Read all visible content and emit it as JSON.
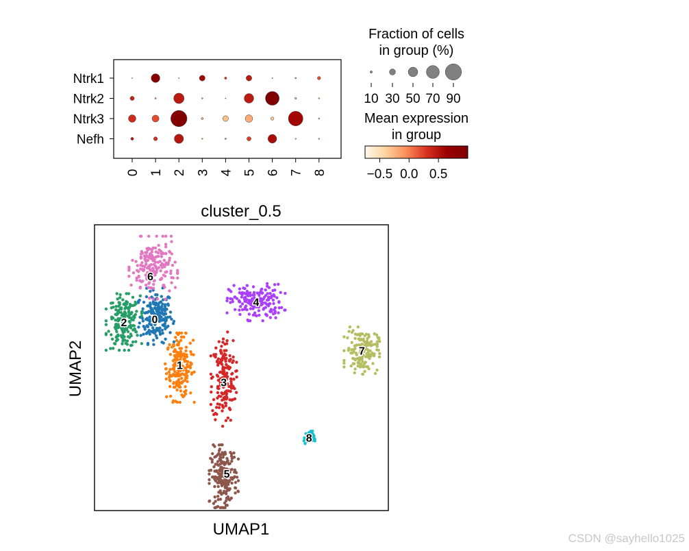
{
  "chart_data": [
    {
      "type": "dotplot",
      "genes": [
        "Ntrk1",
        "Ntrk2",
        "Ntrk3",
        "Nefh"
      ],
      "groups": [
        "0",
        "1",
        "2",
        "3",
        "4",
        "5",
        "6",
        "7",
        "8"
      ],
      "fraction_pct": [
        [
          1,
          45,
          1,
          28,
          10,
          28,
          2,
          6,
          15
        ],
        [
          20,
          6,
          55,
          6,
          3,
          50,
          75,
          8,
          5
        ],
        [
          38,
          35,
          90,
          9,
          28,
          38,
          15,
          80,
          5
        ],
        [
          13,
          18,
          48,
          5,
          7,
          20,
          45,
          5,
          5
        ]
      ],
      "mean_expression": [
        [
          0.0,
          0.85,
          0.0,
          0.6,
          0.25,
          0.45,
          0.3,
          0.0,
          0.2
        ],
        [
          0.4,
          0.05,
          0.45,
          -0.2,
          0.0,
          0.45,
          1.0,
          -0.25,
          -0.1
        ],
        [
          0.35,
          0.2,
          0.95,
          -0.2,
          -0.3,
          -0.2,
          -0.35,
          0.6,
          -0.1
        ],
        [
          0.45,
          0.3,
          0.5,
          -0.1,
          -0.2,
          0.25,
          0.55,
          -0.3,
          -0.1
        ]
      ],
      "size_legend": {
        "title_lines": [
          "Fraction of cells",
          "in group (%)"
        ],
        "values": [
          10,
          30,
          50,
          70,
          90
        ],
        "labels": [
          "10",
          "30",
          "50",
          "70",
          "90"
        ]
      },
      "color_legend": {
        "title_lines": [
          "Mean expression",
          "in group"
        ],
        "range": [
          -0.75,
          1.0
        ],
        "tick_values": [
          -0.5,
          0.0,
          0.5
        ],
        "tick_labels": [
          "−0.5",
          "0.0",
          "0.5"
        ],
        "colormap": "OrRd",
        "colors": [
          "#fff7ec",
          "#fdd49e",
          "#fc8d59",
          "#d7301f",
          "#990000",
          "#7f0000"
        ]
      }
    },
    {
      "type": "scatter",
      "title": "cluster_0.5",
      "xlabel": "UMAP1",
      "ylabel": "UMAP2",
      "xlim": [
        0,
        10
      ],
      "ylim": [
        0,
        10
      ],
      "clusters": [
        {
          "label": "0",
          "color": "#1f77b4",
          "center": [
            2.1,
            6.8
          ],
          "spread": [
            0.55,
            0.9
          ],
          "n": 200
        },
        {
          "label": "1",
          "color": "#ff7f0e",
          "center": [
            2.9,
            5.0
          ],
          "spread": [
            0.45,
            1.1
          ],
          "n": 190
        },
        {
          "label": "2",
          "color": "#279e68",
          "center": [
            1.0,
            6.6
          ],
          "spread": [
            0.55,
            0.9
          ],
          "n": 190
        },
        {
          "label": "3",
          "color": "#d62728",
          "center": [
            4.4,
            4.6
          ],
          "spread": [
            0.4,
            1.5
          ],
          "n": 190
        },
        {
          "label": "4",
          "color": "#aa40fc",
          "center": [
            5.5,
            7.3
          ],
          "spread": [
            0.9,
            0.6
          ],
          "n": 180
        },
        {
          "label": "5",
          "color": "#8c564b",
          "center": [
            4.4,
            1.2
          ],
          "spread": [
            0.45,
            1.0
          ],
          "n": 220
        },
        {
          "label": "6",
          "color": "#e377c2",
          "center": [
            2.0,
            8.5
          ],
          "spread": [
            0.75,
            1.0
          ],
          "n": 190
        },
        {
          "label": "7",
          "color": "#b5bd61",
          "center": [
            9.1,
            5.6
          ],
          "spread": [
            0.55,
            0.75
          ],
          "n": 150
        },
        {
          "label": "8",
          "color": "#17becf",
          "center": [
            7.3,
            2.55
          ],
          "spread": [
            0.18,
            0.22
          ],
          "n": 45
        }
      ],
      "label_positions": {
        "0": [
          2.05,
          6.7
        ],
        "1": [
          2.9,
          5.1
        ],
        "2": [
          1.0,
          6.6
        ],
        "3": [
          4.4,
          4.5
        ],
        "4": [
          5.5,
          7.3
        ],
        "5": [
          4.5,
          1.3
        ],
        "6": [
          1.9,
          8.2
        ],
        "7": [
          9.1,
          5.6
        ],
        "8": [
          7.3,
          2.55
        ]
      },
      "legend": "on data"
    }
  ],
  "watermark": "CSDN @sayhello1025"
}
